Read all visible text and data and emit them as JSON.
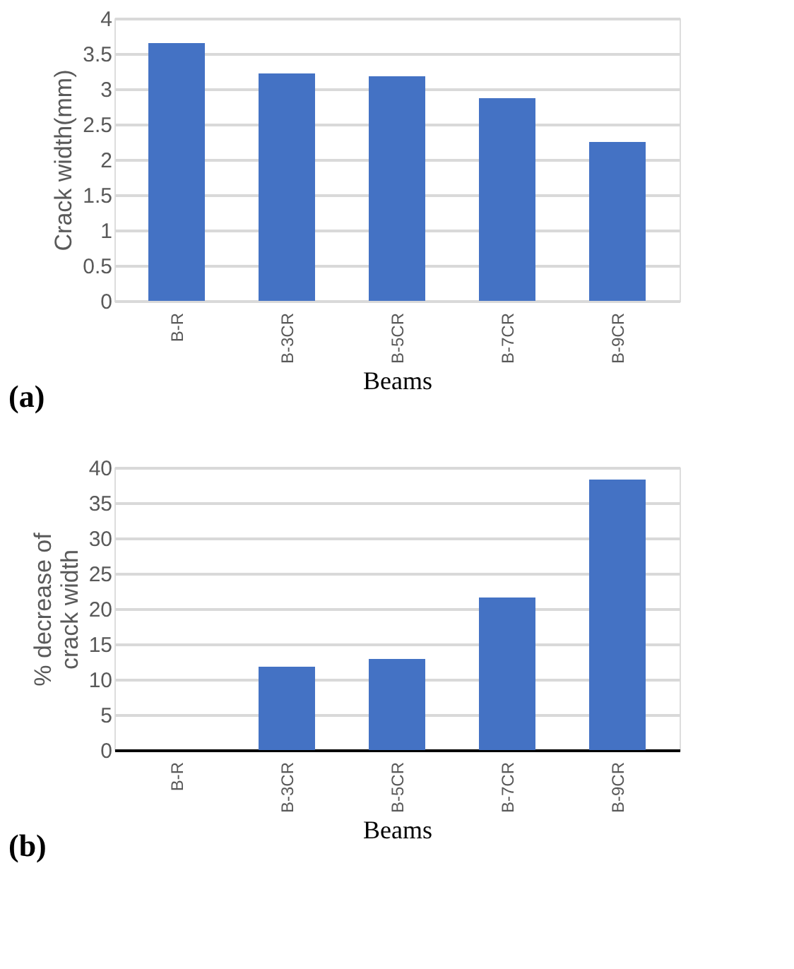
{
  "chart_data": [
    {
      "type": "bar",
      "xlabel": "Beams",
      "ylabel": "Crack width(mm)",
      "categories": [
        "B-R",
        "B-3CR",
        "B-5CR",
        "B-7CR",
        "B-9CR"
      ],
      "values": [
        3.65,
        3.22,
        3.18,
        2.87,
        2.25
      ],
      "color": "#4472c4",
      "ylim": [
        0,
        4
      ],
      "yticks": [
        0,
        0.5,
        1,
        1.5,
        2,
        2.5,
        3,
        3.5,
        4
      ],
      "grid": "y",
      "annotations": [
        "(a)"
      ]
    },
    {
      "type": "bar",
      "xlabel": "Beams",
      "ylabel": "% decrease of crack width",
      "categories": [
        "B-R",
        "B-3CR",
        "B-5CR",
        "B-7CR",
        "B-9CR"
      ],
      "values": [
        0,
        11.8,
        12.9,
        21.6,
        38.3
      ],
      "color": "#4472c4",
      "ylim": [
        0,
        40
      ],
      "yticks": [
        0,
        5,
        10,
        15,
        20,
        25,
        30,
        35,
        40
      ],
      "grid": "y",
      "annotations": [
        "(b)"
      ]
    }
  ]
}
